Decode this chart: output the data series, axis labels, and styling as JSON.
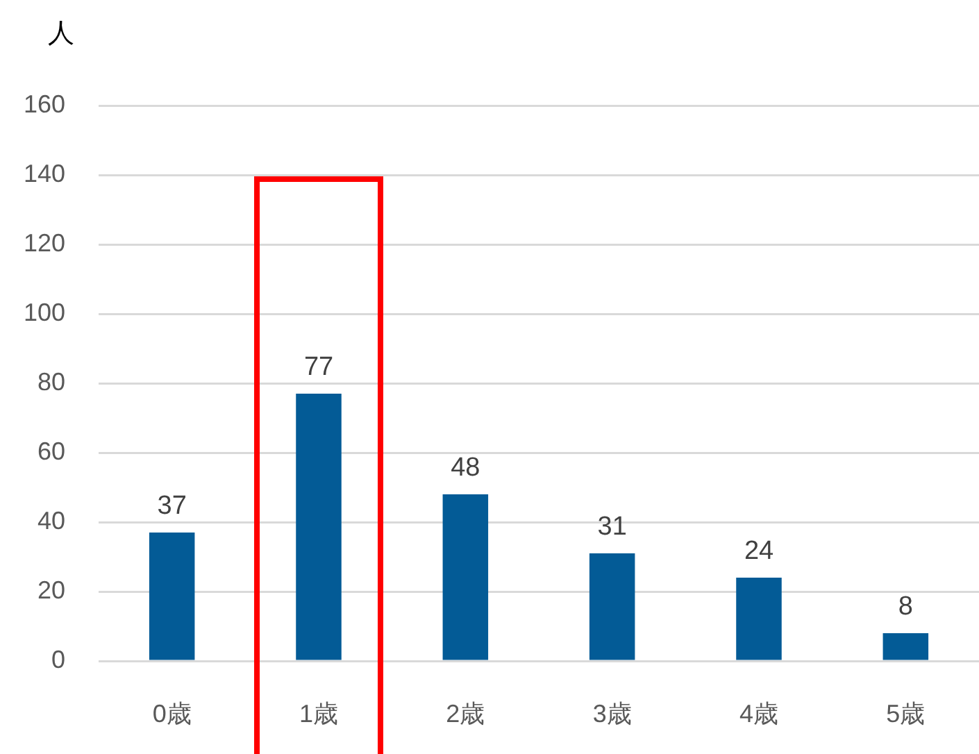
{
  "chart_data": {
    "type": "bar",
    "ylabel": "人",
    "categories": [
      "0歳",
      "1歳",
      "2歳",
      "3歳",
      "4歳",
      "5歳"
    ],
    "values": [
      37,
      77,
      48,
      31,
      24,
      8
    ],
    "color": "#035b96",
    "ylim": [
      0,
      160
    ],
    "yticks": [
      0,
      20,
      40,
      60,
      80,
      100,
      120,
      140,
      160
    ],
    "grid": "y",
    "data_labels": true
  }
}
